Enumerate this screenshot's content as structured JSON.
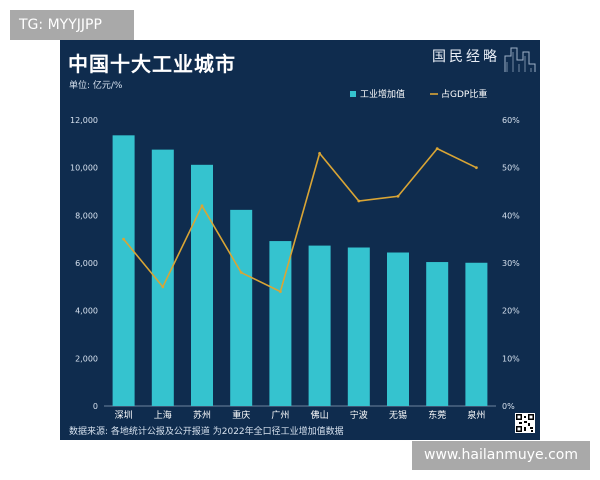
{
  "overlay": {
    "top_tag": "TG: MYYJJPP",
    "bottom_tag": "www.hailanmuye.com"
  },
  "header": {
    "title": "中国十大工业城市",
    "unit": "单位: 亿元/%",
    "brand": "国民经略"
  },
  "footer": {
    "source": "数据来源: 各地统计公报及公开报道 为2022年全口径工业增加值数据"
  },
  "colors": {
    "background": "#0f2c4e",
    "bar": "#35c3cf",
    "line": "#d9a535",
    "text": "#ffffff"
  },
  "chart_data": {
    "type": "bar",
    "categories": [
      "深圳",
      "上海",
      "苏州",
      "重庆",
      "广州",
      "佛山",
      "宁波",
      "无锡",
      "东莞",
      "泉州"
    ],
    "series": [
      {
        "name": "工业增加值",
        "type": "bar",
        "axis": "left",
        "values": [
          11357,
          10757,
          10120,
          8230,
          6920,
          6730,
          6650,
          6440,
          6040,
          6010
        ]
      },
      {
        "name": "占GDP比重",
        "type": "line",
        "axis": "right",
        "values": [
          35,
          25,
          42,
          28,
          24,
          53,
          43,
          44,
          54,
          50
        ]
      }
    ],
    "yleft": {
      "ticks": [
        "12,000",
        "10,000",
        "8,000",
        "6,000",
        "4,000",
        "2,000",
        "0"
      ],
      "ylim": [
        0,
        12000
      ]
    },
    "yright": {
      "ticks": [
        "60%",
        "50%",
        "40%",
        "30%",
        "20%",
        "10%",
        "0%"
      ],
      "ylim": [
        0,
        60
      ]
    },
    "legend": {
      "placement": "top-right"
    },
    "grid": false
  }
}
